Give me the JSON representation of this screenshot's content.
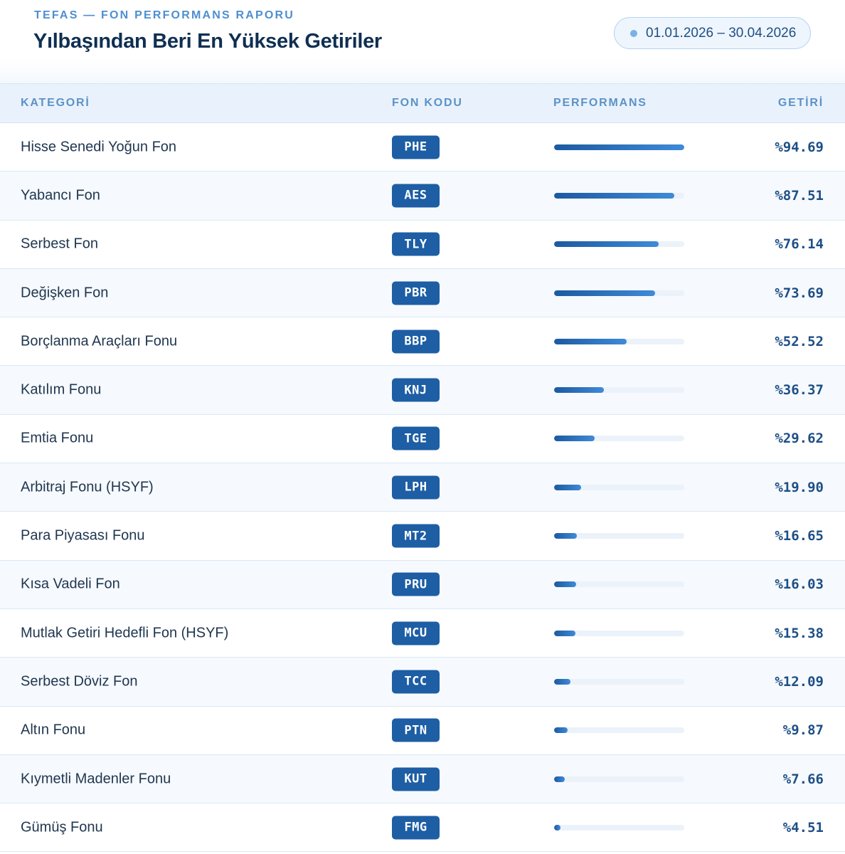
{
  "header": {
    "eyebrow": "TEFAS — FON PERFORMANS RAPORU",
    "title": "Yılbaşından Beri En Yüksek Getiriler",
    "date_range": "01.01.2026 – 30.04.2026"
  },
  "table": {
    "columns": {
      "category": "KATEGORİ",
      "code": "FON KODU",
      "performance": "PERFORMANS",
      "return": "GETİRİ"
    },
    "max_return": 94.69,
    "rows": [
      {
        "category": "Hisse Senedi Yoğun Fon",
        "code": "PHE",
        "return_value": 94.69,
        "return_text": "%94.69"
      },
      {
        "category": "Yabancı Fon",
        "code": "AES",
        "return_value": 87.51,
        "return_text": "%87.51"
      },
      {
        "category": "Serbest Fon",
        "code": "TLY",
        "return_value": 76.14,
        "return_text": "%76.14"
      },
      {
        "category": "Değişken Fon",
        "code": "PBR",
        "return_value": 73.69,
        "return_text": "%73.69"
      },
      {
        "category": "Borçlanma Araçları Fonu",
        "code": "BBP",
        "return_value": 52.52,
        "return_text": "%52.52"
      },
      {
        "category": "Katılım Fonu",
        "code": "KNJ",
        "return_value": 36.37,
        "return_text": "%36.37"
      },
      {
        "category": "Emtia Fonu",
        "code": "TGE",
        "return_value": 29.62,
        "return_text": "%29.62"
      },
      {
        "category": "Arbitraj Fonu (HSYF)",
        "code": "LPH",
        "return_value": 19.9,
        "return_text": "%19.90"
      },
      {
        "category": "Para Piyasası Fonu",
        "code": "MT2",
        "return_value": 16.65,
        "return_text": "%16.65"
      },
      {
        "category": "Kısa Vadeli Fon",
        "code": "PRU",
        "return_value": 16.03,
        "return_text": "%16.03"
      },
      {
        "category": "Mutlak Getiri Hedefli Fon (HSYF)",
        "code": "MCU",
        "return_value": 15.38,
        "return_text": "%15.38"
      },
      {
        "category": "Serbest Döviz Fon",
        "code": "TCC",
        "return_value": 12.09,
        "return_text": "%12.09"
      },
      {
        "category": "Altın Fonu",
        "code": "PTN",
        "return_value": 9.87,
        "return_text": "%9.87"
      },
      {
        "category": "Kıymetli Madenler Fonu",
        "code": "KUT",
        "return_value": 7.66,
        "return_text": "%7.66"
      },
      {
        "category": "Gümüş Fonu",
        "code": "FMG",
        "return_value": 4.51,
        "return_text": "%4.51"
      }
    ]
  },
  "colors": {
    "accent": "#1d5ea4",
    "eyebrow": "#4d8fd0",
    "title": "#0f2f52",
    "header_bg": "#e9f2fc"
  }
}
